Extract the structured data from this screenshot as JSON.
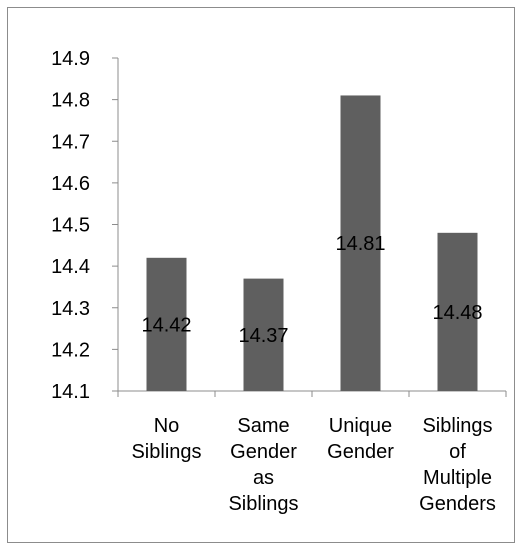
{
  "chart_data": {
    "type": "bar",
    "categories": [
      [
        "No",
        "Siblings"
      ],
      [
        "Same",
        "Gender",
        "as",
        "Siblings"
      ],
      [
        "Unique",
        "Gender"
      ],
      [
        "Siblings",
        "of",
        "Multiple",
        "Genders"
      ]
    ],
    "values": [
      14.42,
      14.37,
      14.81,
      14.48
    ],
    "data_labels": [
      "14.42",
      "14.37",
      "14.81",
      "14.48"
    ],
    "title": "",
    "xlabel": "",
    "ylabel": "",
    "ylim": [
      14.1,
      14.9
    ],
    "yticks": [
      "14.9",
      "14.8",
      "14.7",
      "14.6",
      "14.5",
      "14.4",
      "14.3",
      "14.2",
      "14.1"
    ],
    "ytick_values": [
      14.9,
      14.8,
      14.7,
      14.6,
      14.5,
      14.4,
      14.3,
      14.2,
      14.1
    ],
    "grid": false,
    "legend": "none",
    "bar_color": "#5f5f5f",
    "axis_color": "#8c8c8c"
  }
}
